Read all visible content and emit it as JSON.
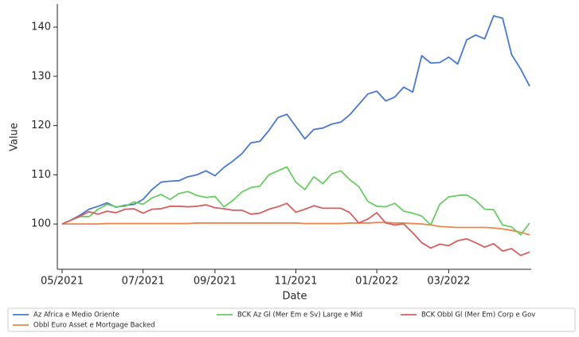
{
  "chart_data": {
    "type": "line",
    "x_label": "Date",
    "y_label": "Value",
    "categories": [
      "05/2021",
      null,
      null,
      null,
      null,
      null,
      null,
      null,
      null,
      "07/2021",
      null,
      null,
      null,
      null,
      null,
      null,
      null,
      "09/2021",
      null,
      null,
      null,
      null,
      null,
      null,
      null,
      null,
      "11/2021",
      null,
      null,
      null,
      null,
      null,
      null,
      null,
      null,
      "01/2022",
      null,
      null,
      null,
      null,
      null,
      null,
      null,
      "03/2022",
      null,
      null,
      null,
      null,
      null,
      null,
      null,
      null,
      null
    ],
    "ylim": [
      90.8,
      144.7
    ],
    "yticks": [
      100,
      110,
      120,
      130,
      140
    ],
    "grid": false,
    "legend": "below",
    "series": [
      {
        "name": "Az Africa e Medio Oriente",
        "color": "#4878d0",
        "values": [
          100,
          100.8,
          101.8,
          103,
          103.6,
          104.3,
          103.4,
          103.8,
          104,
          105,
          107,
          108.5,
          108.7,
          108.8,
          109.6,
          110,
          110.8,
          109.8,
          111.5,
          112.8,
          114.3,
          116.5,
          116.8,
          119,
          121.6,
          122.3,
          119.8,
          117.3,
          119.2,
          119.5,
          120.3,
          120.7,
          122.2,
          124.3,
          126.4,
          127,
          125,
          125.8,
          127.8,
          126.8,
          134.2,
          132.7,
          132.8,
          133.9,
          132.5,
          137.4,
          138.4,
          137.6,
          142.3,
          141.8,
          134.4,
          131.5,
          128
        ]
      },
      {
        "name": "Obbl Euro Asset e Mortgage Backed",
        "color": "#ee854a",
        "values": [
          100,
          100,
          100,
          100,
          100,
          100.1,
          100.1,
          100.1,
          100.1,
          100.1,
          100.1,
          100.1,
          100.1,
          100.1,
          100.1,
          100.2,
          100.2,
          100.2,
          100.2,
          100.2,
          100.2,
          100.2,
          100.2,
          100.2,
          100.2,
          100.2,
          100.2,
          100.1,
          100.1,
          100.1,
          100.1,
          100.1,
          100.2,
          100.2,
          100.2,
          100.3,
          100.3,
          100.2,
          100.2,
          100.1,
          100,
          99.8,
          99.5,
          99.4,
          99.3,
          99.3,
          99.3,
          99.3,
          99.2,
          99,
          98.7,
          98.3,
          97.8
        ]
      },
      {
        "name": "BCK Az Gl (Mer Em e Sv) Large e Mid",
        "color": "#6acc64",
        "values": [
          100,
          100.8,
          101.5,
          101.5,
          103,
          104,
          103.5,
          103.6,
          104.5,
          104,
          105.3,
          106,
          105,
          106.2,
          106.6,
          105.8,
          105.4,
          105.6,
          103.5,
          104.8,
          106.5,
          107.4,
          107.7,
          110,
          110.8,
          111.6,
          108.5,
          107,
          109.6,
          108.2,
          110.2,
          110.8,
          109,
          107.6,
          104.6,
          103.6,
          103.5,
          104.2,
          102.6,
          102.2,
          101.6,
          99.8,
          104,
          105.5,
          105.8,
          105.9,
          104.8,
          103,
          102.9,
          99.8,
          99.4,
          97.8,
          100.2
        ]
      },
      {
        "name": "BCK Obbl Gl (Mer Em) Corp e Gov",
        "color": "#d65f5f",
        "values": [
          100,
          100.8,
          101.6,
          102.5,
          102,
          102.6,
          102.3,
          103,
          103.1,
          102.2,
          103,
          103.1,
          103.6,
          103.6,
          103.5,
          103.6,
          103.9,
          103.3,
          103.1,
          102.8,
          102.8,
          102,
          102.2,
          103,
          103.5,
          104.2,
          102.4,
          103,
          103.7,
          103.2,
          103.2,
          103.2,
          102.3,
          100.2,
          101,
          102.3,
          100.2,
          99.8,
          100,
          98.2,
          96.2,
          95.1,
          95.9,
          95.6,
          96.6,
          97,
          96.2,
          95.3,
          96,
          94.5,
          95,
          93.6,
          94.3
        ]
      }
    ]
  }
}
